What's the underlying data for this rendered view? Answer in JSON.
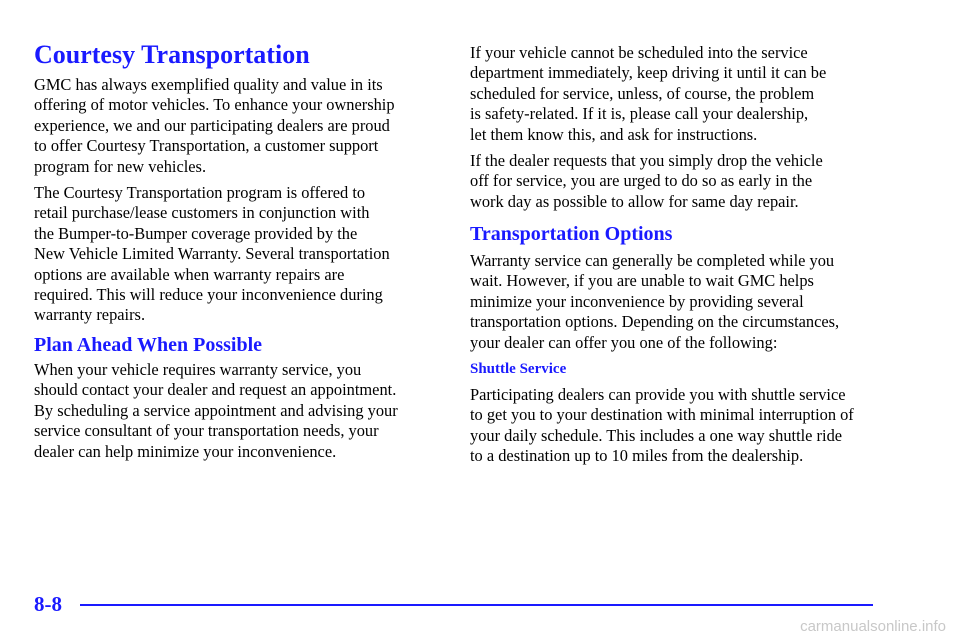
{
  "title": "Courtesy Transportation",
  "left": {
    "p1": [
      "GMC has always exemplified quality and value in its",
      "offering of motor vehicles. To enhance your ownership",
      "experience, we and our participating dealers are proud",
      "to offer Courtesy Transportation, a customer support",
      "program for new vehicles."
    ],
    "p2": [
      "The Courtesy Transportation program is offered to",
      "retail purchase/lease customers in conjunction with",
      "the Bumper-to-Bumper coverage provided by the",
      "New Vehicle Limited Warranty. Several transportation",
      "options are available when warranty repairs are",
      "required. This will reduce your inconvenience during",
      "warranty repairs."
    ],
    "heading": "Plan Ahead When Possible",
    "p3": [
      "When your vehicle requires warranty service, you",
      "should contact your dealer and request an appointment.",
      "By scheduling a service appointment and advising your",
      "service consultant of your transportation needs, your",
      "dealer can help minimize your inconvenience."
    ]
  },
  "right": {
    "p1": [
      "If your vehicle cannot be scheduled into the service",
      "department immediately, keep driving it until it can be",
      "scheduled for service, unless, of course, the problem",
      "is safety-related. If it is, please call your dealership,",
      "let them know this, and ask for instructions."
    ],
    "p2": [
      "If the dealer requests that you simply drop the vehicle",
      "off for service, you are urged to do so as early in the",
      "work day as possible to allow for same day repair."
    ],
    "heading": "Transportation Options",
    "p3": [
      "Warranty service can generally be completed while you",
      "wait. However, if you are unable to wait GMC helps",
      "minimize your inconvenience by providing several",
      "transportation options. Depending on the circumstances,",
      "your dealer can offer you one of the following:"
    ],
    "subheading": "Shuttle Service",
    "p4": [
      "Participating dealers can provide you with shuttle service",
      "to get you to your destination with minimal interruption of",
      "your daily schedule. This includes a one way shuttle ride",
      "to a destination up to 10 miles from the dealership."
    ]
  },
  "footer": {
    "page": "8-8",
    "watermark": "carmanualsonline.info"
  }
}
